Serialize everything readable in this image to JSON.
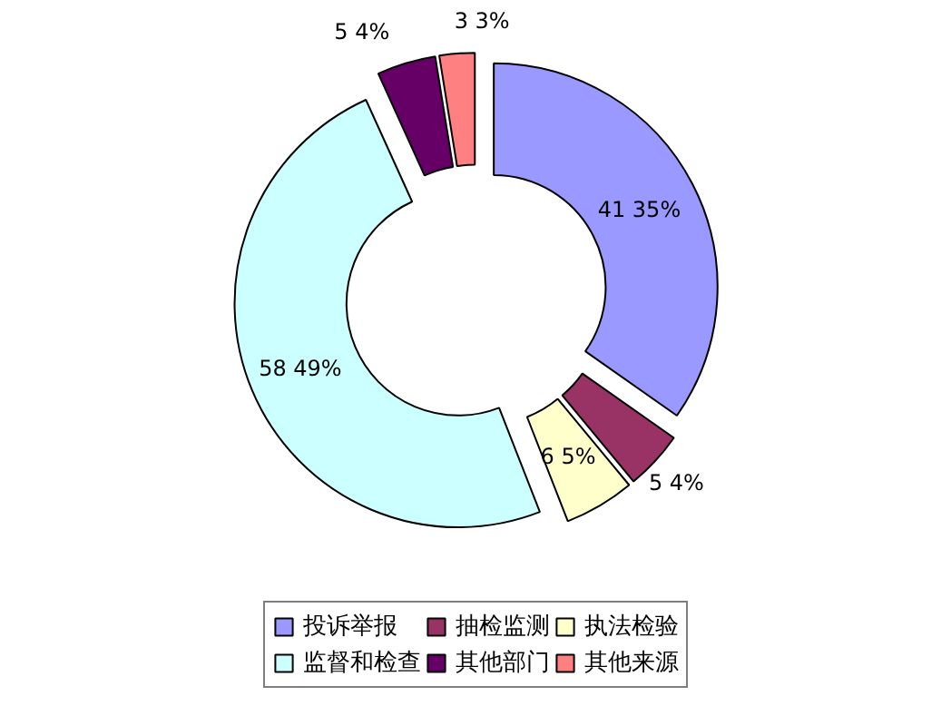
{
  "chart_data": {
    "type": "donut",
    "categories": [
      "投诉举报",
      "抽检监测",
      "执法检验",
      "监督和检查",
      "其他部门",
      "其他来源"
    ],
    "values": [
      41,
      5,
      6,
      58,
      5,
      3
    ],
    "colors": [
      "#9999ff",
      "#993366",
      "#ffffcc",
      "#ccffff",
      "#660066",
      "#ff8080"
    ],
    "value_labels": [
      "41  35%",
      "5  4%",
      "6  5%",
      "58  49%",
      "5  4%",
      "3  3%"
    ],
    "legend": "bottom"
  }
}
